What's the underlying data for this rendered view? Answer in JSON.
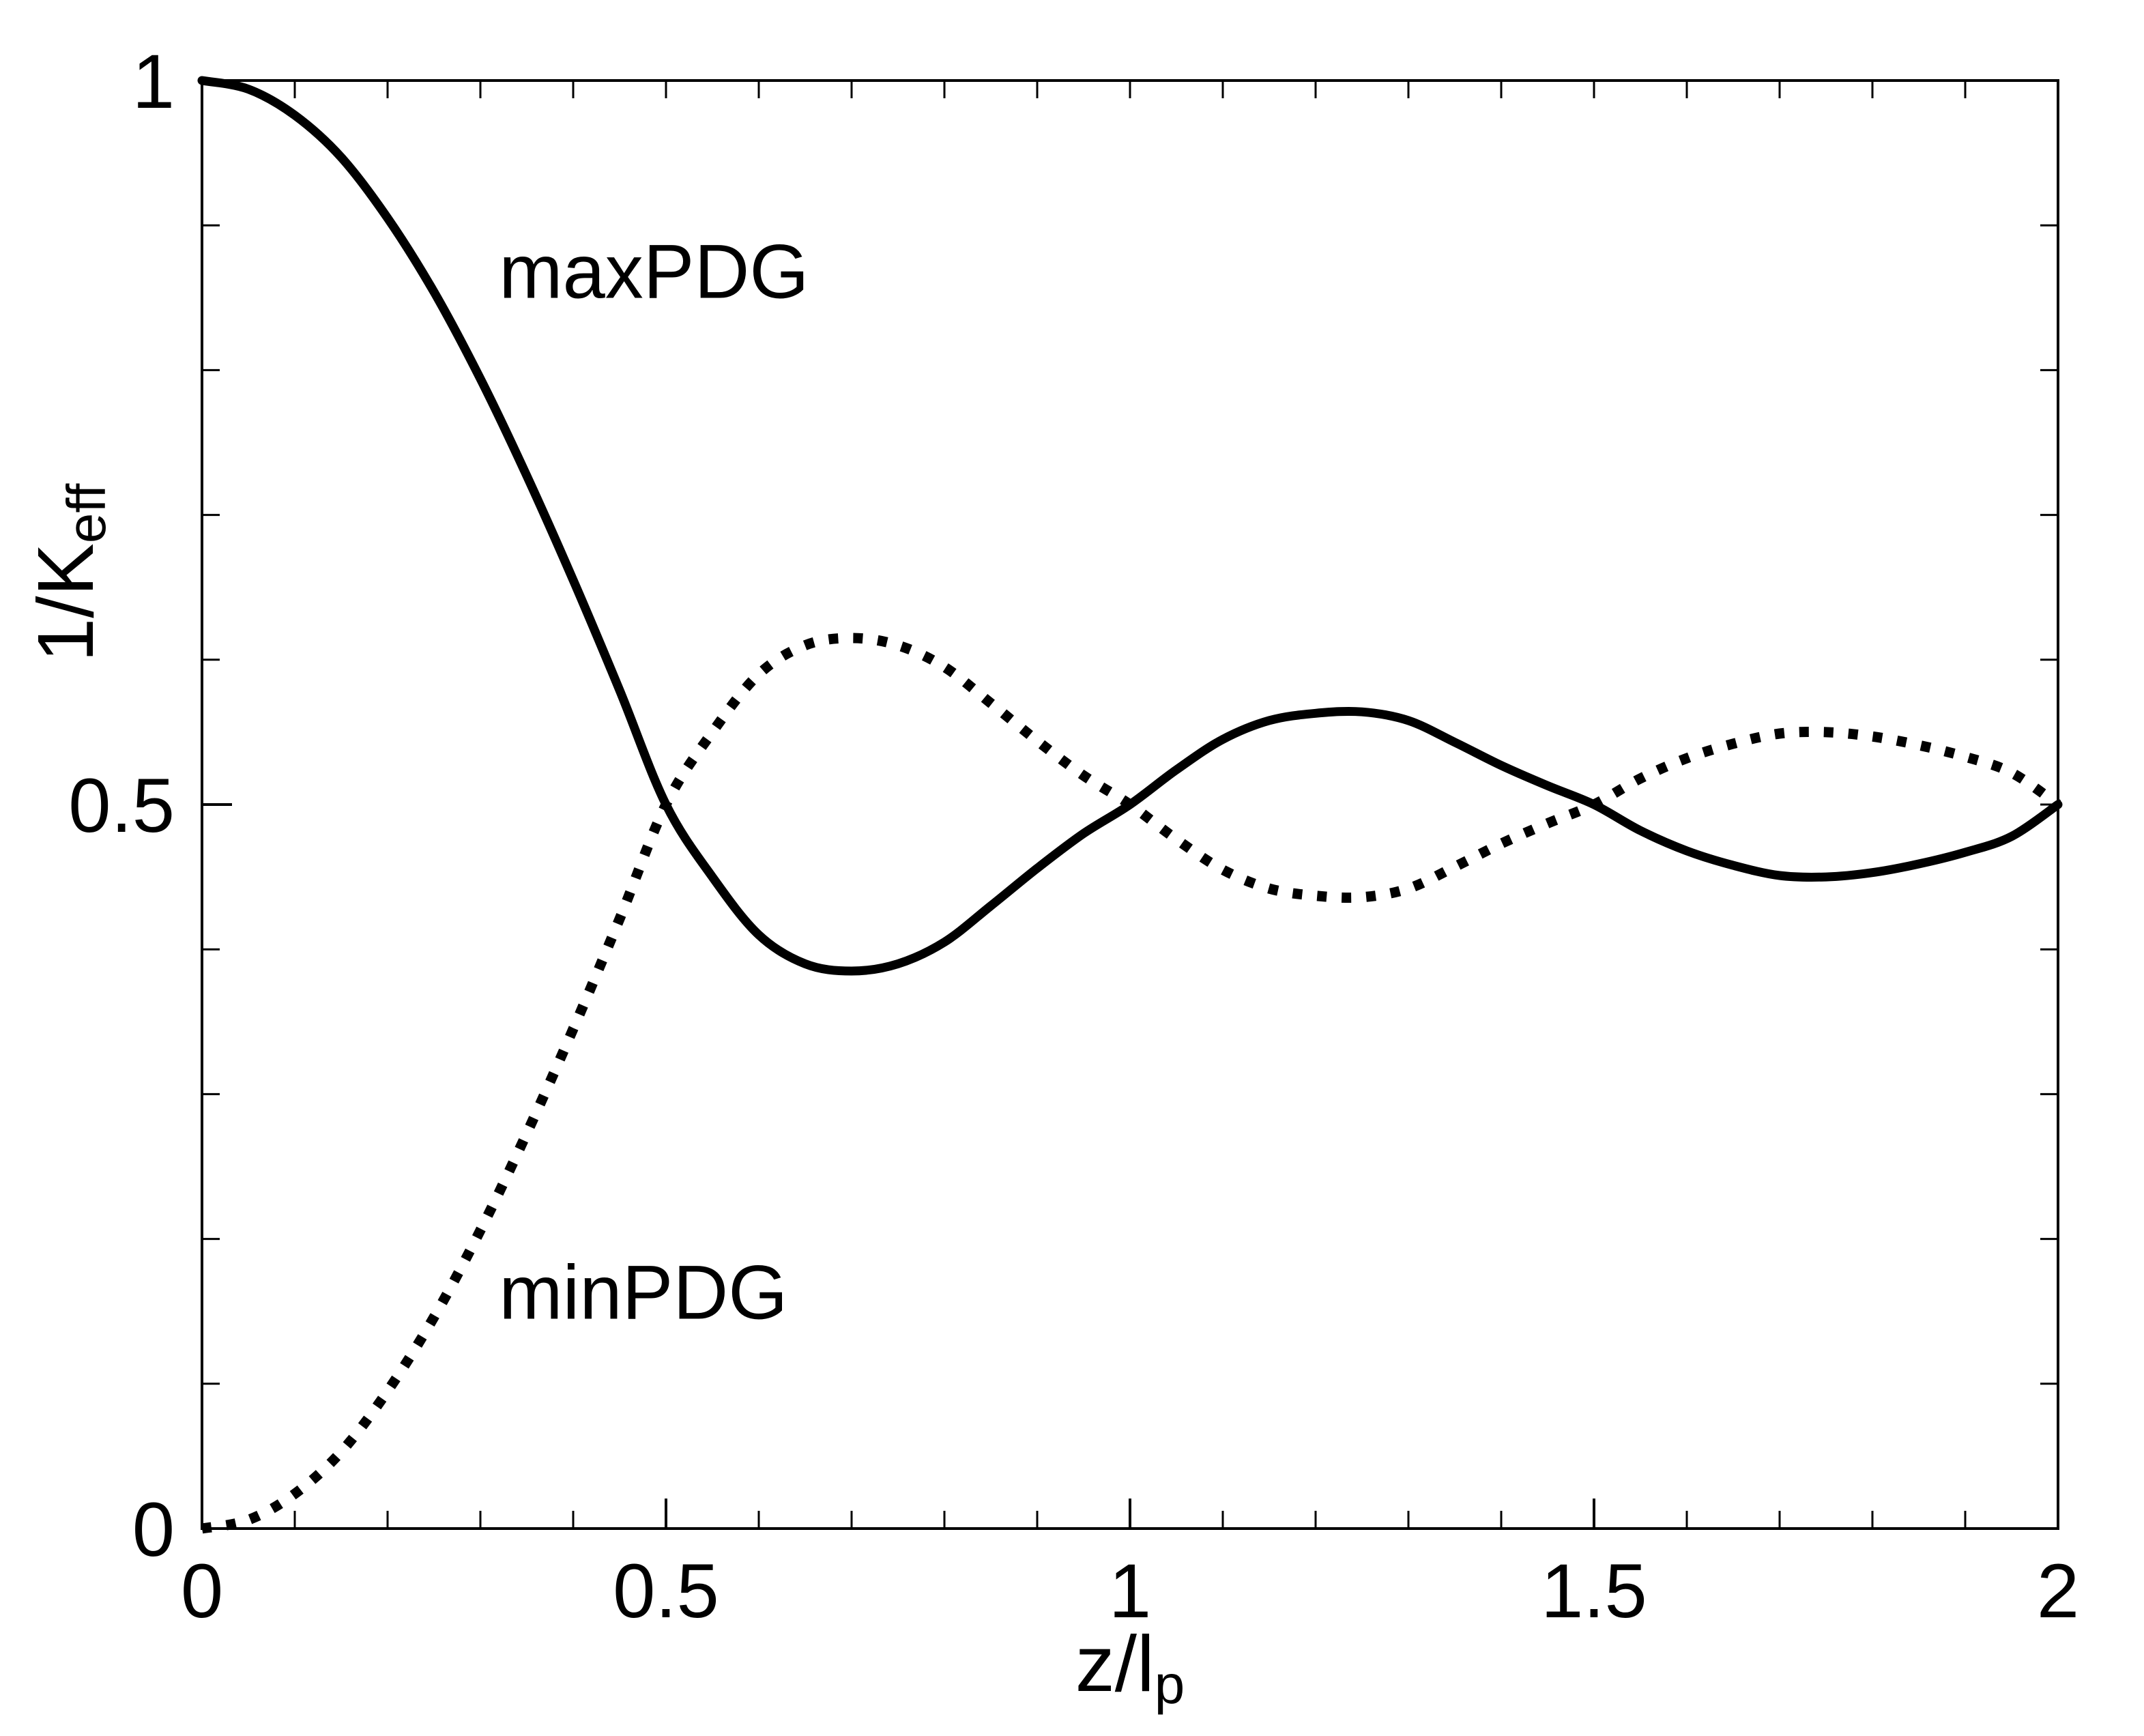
{
  "chart_data": {
    "type": "line",
    "title": "",
    "xlabel": {
      "base": "z/l",
      "sub": "p"
    },
    "ylabel": {
      "base": "1/K",
      "sub": "eff"
    },
    "xlim": [
      0,
      2
    ],
    "ylim": [
      0,
      1
    ],
    "x_ticks": [
      {
        "value": 0,
        "label": "0"
      },
      {
        "value": 0.5,
        "label": "0.5"
      },
      {
        "value": 1,
        "label": "1"
      },
      {
        "value": 1.5,
        "label": "1.5"
      },
      {
        "value": 2,
        "label": "2"
      }
    ],
    "y_ticks": [
      {
        "value": 0,
        "label": "0"
      },
      {
        "value": 0.5,
        "label": "0.5"
      },
      {
        "value": 1,
        "label": "1"
      }
    ],
    "x_minor_step": 0.1,
    "y_minor_step": 0.1,
    "grid": false,
    "series": [
      {
        "name": "maxPDG",
        "style": "solid",
        "color": "#000000",
        "x": [
          0,
          0.05,
          0.1,
          0.15,
          0.2,
          0.25,
          0.3,
          0.35,
          0.4,
          0.45,
          0.5,
          0.55,
          0.6,
          0.65,
          0.7,
          0.75,
          0.8,
          0.85,
          0.9,
          0.95,
          1.0,
          1.05,
          1.1,
          1.15,
          1.2,
          1.25,
          1.3,
          1.35,
          1.4,
          1.45,
          1.5,
          1.55,
          1.6,
          1.65,
          1.7,
          1.75,
          1.8,
          1.85,
          1.9,
          1.95,
          2.0
        ],
        "values": [
          1.0,
          0.994,
          0.976,
          0.947,
          0.905,
          0.854,
          0.794,
          0.727,
          0.655,
          0.579,
          0.5,
          0.45,
          0.41,
          0.39,
          0.385,
          0.39,
          0.405,
          0.43,
          0.456,
          0.48,
          0.5,
          0.524,
          0.545,
          0.558,
          0.563,
          0.564,
          0.558,
          0.543,
          0.527,
          0.513,
          0.5,
          0.482,
          0.468,
          0.458,
          0.451,
          0.45,
          0.453,
          0.459,
          0.467,
          0.478,
          0.5
        ]
      },
      {
        "name": "minPDG",
        "style": "dotted",
        "color": "#000000",
        "x": [
          0,
          0.05,
          0.1,
          0.15,
          0.2,
          0.25,
          0.3,
          0.35,
          0.4,
          0.45,
          0.5,
          0.55,
          0.6,
          0.65,
          0.7,
          0.75,
          0.8,
          0.85,
          0.9,
          0.95,
          1.0,
          1.05,
          1.1,
          1.15,
          1.2,
          1.25,
          1.3,
          1.35,
          1.4,
          1.45,
          1.5,
          1.55,
          1.6,
          1.65,
          1.7,
          1.75,
          1.8,
          1.85,
          1.9,
          1.95,
          2.0
        ],
        "values": [
          0.0,
          0.006,
          0.024,
          0.053,
          0.095,
          0.146,
          0.206,
          0.273,
          0.345,
          0.421,
          0.5,
          0.55,
          0.59,
          0.61,
          0.615,
          0.61,
          0.595,
          0.57,
          0.544,
          0.52,
          0.5,
          0.476,
          0.455,
          0.442,
          0.437,
          0.436,
          0.442,
          0.457,
          0.473,
          0.487,
          0.5,
          0.518,
          0.532,
          0.542,
          0.549,
          0.55,
          0.547,
          0.541,
          0.533,
          0.522,
          0.5
        ]
      }
    ],
    "annotations": [
      {
        "text": "maxPDG",
        "x": 0.32,
        "y": 0.85
      },
      {
        "text": "minPDG",
        "x": 0.32,
        "y": 0.145
      }
    ]
  }
}
